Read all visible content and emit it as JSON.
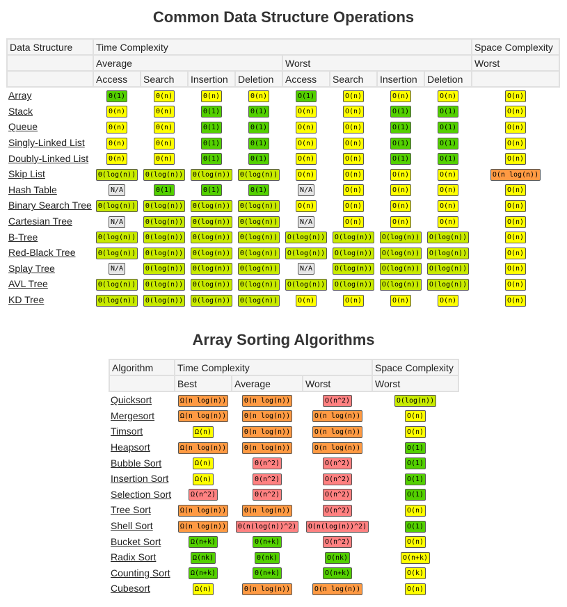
{
  "titles": {
    "data_structures": "Common Data Structure Operations",
    "sorting": "Array Sorting Algorithms"
  },
  "colors": {
    "green": "#53d000",
    "yellow_green": "#c8ea00",
    "yellow": "#ffff00",
    "orange": "#ff9a43",
    "red": "#ff8181",
    "na_gray": "#e6e6e6"
  },
  "ds_table": {
    "header1": [
      "Data Structure",
      "Time Complexity",
      "Space Complexity"
    ],
    "header2": [
      "Average",
      "Worst",
      "Worst"
    ],
    "header3": [
      "Access",
      "Search",
      "Insertion",
      "Deletion",
      "Access",
      "Search",
      "Insertion",
      "Deletion"
    ],
    "rows": [
      {
        "name": "Array",
        "cells": [
          [
            "Θ(1)",
            "g"
          ],
          [
            "Θ(n)",
            "y"
          ],
          [
            "Θ(n)",
            "y"
          ],
          [
            "Θ(n)",
            "y"
          ],
          [
            "O(1)",
            "g"
          ],
          [
            "O(n)",
            "y"
          ],
          [
            "O(n)",
            "y"
          ],
          [
            "O(n)",
            "y"
          ],
          [
            "O(n)",
            "y"
          ]
        ]
      },
      {
        "name": "Stack",
        "cells": [
          [
            "Θ(n)",
            "y"
          ],
          [
            "Θ(n)",
            "y"
          ],
          [
            "Θ(1)",
            "g"
          ],
          [
            "Θ(1)",
            "g"
          ],
          [
            "O(n)",
            "y"
          ],
          [
            "O(n)",
            "y"
          ],
          [
            "O(1)",
            "g"
          ],
          [
            "O(1)",
            "g"
          ],
          [
            "O(n)",
            "y"
          ]
        ]
      },
      {
        "name": "Queue",
        "cells": [
          [
            "Θ(n)",
            "y"
          ],
          [
            "Θ(n)",
            "y"
          ],
          [
            "Θ(1)",
            "g"
          ],
          [
            "Θ(1)",
            "g"
          ],
          [
            "O(n)",
            "y"
          ],
          [
            "O(n)",
            "y"
          ],
          [
            "O(1)",
            "g"
          ],
          [
            "O(1)",
            "g"
          ],
          [
            "O(n)",
            "y"
          ]
        ]
      },
      {
        "name": "Singly-Linked List",
        "cells": [
          [
            "Θ(n)",
            "y"
          ],
          [
            "Θ(n)",
            "y"
          ],
          [
            "Θ(1)",
            "g"
          ],
          [
            "Θ(1)",
            "g"
          ],
          [
            "O(n)",
            "y"
          ],
          [
            "O(n)",
            "y"
          ],
          [
            "O(1)",
            "g"
          ],
          [
            "O(1)",
            "g"
          ],
          [
            "O(n)",
            "y"
          ]
        ]
      },
      {
        "name": "Doubly-Linked List",
        "cells": [
          [
            "Θ(n)",
            "y"
          ],
          [
            "Θ(n)",
            "y"
          ],
          [
            "Θ(1)",
            "g"
          ],
          [
            "Θ(1)",
            "g"
          ],
          [
            "O(n)",
            "y"
          ],
          [
            "O(n)",
            "y"
          ],
          [
            "O(1)",
            "g"
          ],
          [
            "O(1)",
            "g"
          ],
          [
            "O(n)",
            "y"
          ]
        ]
      },
      {
        "name": "Skip List",
        "cells": [
          [
            "Θ(log(n))",
            "lg"
          ],
          [
            "Θ(log(n))",
            "lg"
          ],
          [
            "Θ(log(n))",
            "lg"
          ],
          [
            "Θ(log(n))",
            "lg"
          ],
          [
            "O(n)",
            "y"
          ],
          [
            "O(n)",
            "y"
          ],
          [
            "O(n)",
            "y"
          ],
          [
            "O(n)",
            "y"
          ],
          [
            "O(n log(n))",
            "o"
          ]
        ]
      },
      {
        "name": "Hash Table",
        "cells": [
          [
            "N/A",
            "gr"
          ],
          [
            "Θ(1)",
            "g"
          ],
          [
            "Θ(1)",
            "g"
          ],
          [
            "Θ(1)",
            "g"
          ],
          [
            "N/A",
            "gr"
          ],
          [
            "O(n)",
            "y"
          ],
          [
            "O(n)",
            "y"
          ],
          [
            "O(n)",
            "y"
          ],
          [
            "O(n)",
            "y"
          ]
        ]
      },
      {
        "name": "Binary Search Tree",
        "cells": [
          [
            "Θ(log(n))",
            "lg"
          ],
          [
            "Θ(log(n))",
            "lg"
          ],
          [
            "Θ(log(n))",
            "lg"
          ],
          [
            "Θ(log(n))",
            "lg"
          ],
          [
            "O(n)",
            "y"
          ],
          [
            "O(n)",
            "y"
          ],
          [
            "O(n)",
            "y"
          ],
          [
            "O(n)",
            "y"
          ],
          [
            "O(n)",
            "y"
          ]
        ]
      },
      {
        "name": "Cartesian Tree",
        "cells": [
          [
            "N/A",
            "gr"
          ],
          [
            "Θ(log(n))",
            "lg"
          ],
          [
            "Θ(log(n))",
            "lg"
          ],
          [
            "Θ(log(n))",
            "lg"
          ],
          [
            "N/A",
            "gr"
          ],
          [
            "O(n)",
            "y"
          ],
          [
            "O(n)",
            "y"
          ],
          [
            "O(n)",
            "y"
          ],
          [
            "O(n)",
            "y"
          ]
        ]
      },
      {
        "name": "B-Tree",
        "cells": [
          [
            "Θ(log(n))",
            "lg"
          ],
          [
            "Θ(log(n))",
            "lg"
          ],
          [
            "Θ(log(n))",
            "lg"
          ],
          [
            "Θ(log(n))",
            "lg"
          ],
          [
            "O(log(n))",
            "lg"
          ],
          [
            "O(log(n))",
            "lg"
          ],
          [
            "O(log(n))",
            "lg"
          ],
          [
            "O(log(n))",
            "lg"
          ],
          [
            "O(n)",
            "y"
          ]
        ]
      },
      {
        "name": "Red-Black Tree",
        "cells": [
          [
            "Θ(log(n))",
            "lg"
          ],
          [
            "Θ(log(n))",
            "lg"
          ],
          [
            "Θ(log(n))",
            "lg"
          ],
          [
            "Θ(log(n))",
            "lg"
          ],
          [
            "O(log(n))",
            "lg"
          ],
          [
            "O(log(n))",
            "lg"
          ],
          [
            "O(log(n))",
            "lg"
          ],
          [
            "O(log(n))",
            "lg"
          ],
          [
            "O(n)",
            "y"
          ]
        ]
      },
      {
        "name": "Splay Tree",
        "cells": [
          [
            "N/A",
            "gr"
          ],
          [
            "Θ(log(n))",
            "lg"
          ],
          [
            "Θ(log(n))",
            "lg"
          ],
          [
            "Θ(log(n))",
            "lg"
          ],
          [
            "N/A",
            "gr"
          ],
          [
            "O(log(n))",
            "lg"
          ],
          [
            "O(log(n))",
            "lg"
          ],
          [
            "O(log(n))",
            "lg"
          ],
          [
            "O(n)",
            "y"
          ]
        ]
      },
      {
        "name": "AVL Tree",
        "cells": [
          [
            "Θ(log(n))",
            "lg"
          ],
          [
            "Θ(log(n))",
            "lg"
          ],
          [
            "Θ(log(n))",
            "lg"
          ],
          [
            "Θ(log(n))",
            "lg"
          ],
          [
            "O(log(n))",
            "lg"
          ],
          [
            "O(log(n))",
            "lg"
          ],
          [
            "O(log(n))",
            "lg"
          ],
          [
            "O(log(n))",
            "lg"
          ],
          [
            "O(n)",
            "y"
          ]
        ]
      },
      {
        "name": "KD Tree",
        "cells": [
          [
            "Θ(log(n))",
            "lg"
          ],
          [
            "Θ(log(n))",
            "lg"
          ],
          [
            "Θ(log(n))",
            "lg"
          ],
          [
            "Θ(log(n))",
            "lg"
          ],
          [
            "O(n)",
            "y"
          ],
          [
            "O(n)",
            "y"
          ],
          [
            "O(n)",
            "y"
          ],
          [
            "O(n)",
            "y"
          ],
          [
            "O(n)",
            "y"
          ]
        ]
      }
    ]
  },
  "sort_table": {
    "header1": [
      "Algorithm",
      "Time Complexity",
      "Space Complexity"
    ],
    "header2": [
      "Best",
      "Average",
      "Worst",
      "Worst"
    ],
    "rows": [
      {
        "name": "Quicksort",
        "cells": [
          [
            "Ω(n log(n))",
            "o"
          ],
          [
            "Θ(n log(n))",
            "o"
          ],
          [
            "O(n^2)",
            "r2"
          ],
          [
            "O(log(n))",
            "lg"
          ]
        ]
      },
      {
        "name": "Mergesort",
        "cells": [
          [
            "Ω(n log(n))",
            "o"
          ],
          [
            "Θ(n log(n))",
            "o"
          ],
          [
            "O(n log(n))",
            "o"
          ],
          [
            "O(n)",
            "y"
          ]
        ]
      },
      {
        "name": "Timsort",
        "cells": [
          [
            "Ω(n)",
            "y"
          ],
          [
            "Θ(n log(n))",
            "o"
          ],
          [
            "O(n log(n))",
            "o"
          ],
          [
            "O(n)",
            "y"
          ]
        ]
      },
      {
        "name": "Heapsort",
        "cells": [
          [
            "Ω(n log(n))",
            "o"
          ],
          [
            "Θ(n log(n))",
            "o"
          ],
          [
            "O(n log(n))",
            "o"
          ],
          [
            "O(1)",
            "g"
          ]
        ]
      },
      {
        "name": "Bubble Sort",
        "cells": [
          [
            "Ω(n)",
            "y"
          ],
          [
            "Θ(n^2)",
            "r2"
          ],
          [
            "O(n^2)",
            "r2"
          ],
          [
            "O(1)",
            "g"
          ]
        ]
      },
      {
        "name": "Insertion Sort",
        "cells": [
          [
            "Ω(n)",
            "y"
          ],
          [
            "Θ(n^2)",
            "r2"
          ],
          [
            "O(n^2)",
            "r2"
          ],
          [
            "O(1)",
            "g"
          ]
        ]
      },
      {
        "name": "Selection Sort",
        "cells": [
          [
            "Ω(n^2)",
            "r2"
          ],
          [
            "Θ(n^2)",
            "r2"
          ],
          [
            "O(n^2)",
            "r2"
          ],
          [
            "O(1)",
            "g"
          ]
        ]
      },
      {
        "name": "Tree Sort",
        "cells": [
          [
            "Ω(n log(n))",
            "o"
          ],
          [
            "Θ(n log(n))",
            "o"
          ],
          [
            "O(n^2)",
            "r2"
          ],
          [
            "O(n)",
            "y"
          ]
        ]
      },
      {
        "name": "Shell Sort",
        "cells": [
          [
            "Ω(n log(n))",
            "o"
          ],
          [
            "Θ(n(log(n))^2)",
            "r2"
          ],
          [
            "O(n(log(n))^2)",
            "r2"
          ],
          [
            "O(1)",
            "g"
          ]
        ]
      },
      {
        "name": "Bucket Sort",
        "cells": [
          [
            "Ω(n+k)",
            "g"
          ],
          [
            "Θ(n+k)",
            "g"
          ],
          [
            "O(n^2)",
            "r2"
          ],
          [
            "O(n)",
            "y"
          ]
        ]
      },
      {
        "name": "Radix Sort",
        "cells": [
          [
            "Ω(nk)",
            "g"
          ],
          [
            "Θ(nk)",
            "g"
          ],
          [
            "O(nk)",
            "g"
          ],
          [
            "O(n+k)",
            "y"
          ]
        ]
      },
      {
        "name": "Counting Sort",
        "cells": [
          [
            "Ω(n+k)",
            "g"
          ],
          [
            "Θ(n+k)",
            "g"
          ],
          [
            "O(n+k)",
            "g"
          ],
          [
            "O(k)",
            "y"
          ]
        ]
      },
      {
        "name": "Cubesort",
        "cells": [
          [
            "Ω(n)",
            "y"
          ],
          [
            "Θ(n log(n))",
            "o"
          ],
          [
            "O(n log(n))",
            "o"
          ],
          [
            "O(n)",
            "y"
          ]
        ]
      }
    ]
  }
}
